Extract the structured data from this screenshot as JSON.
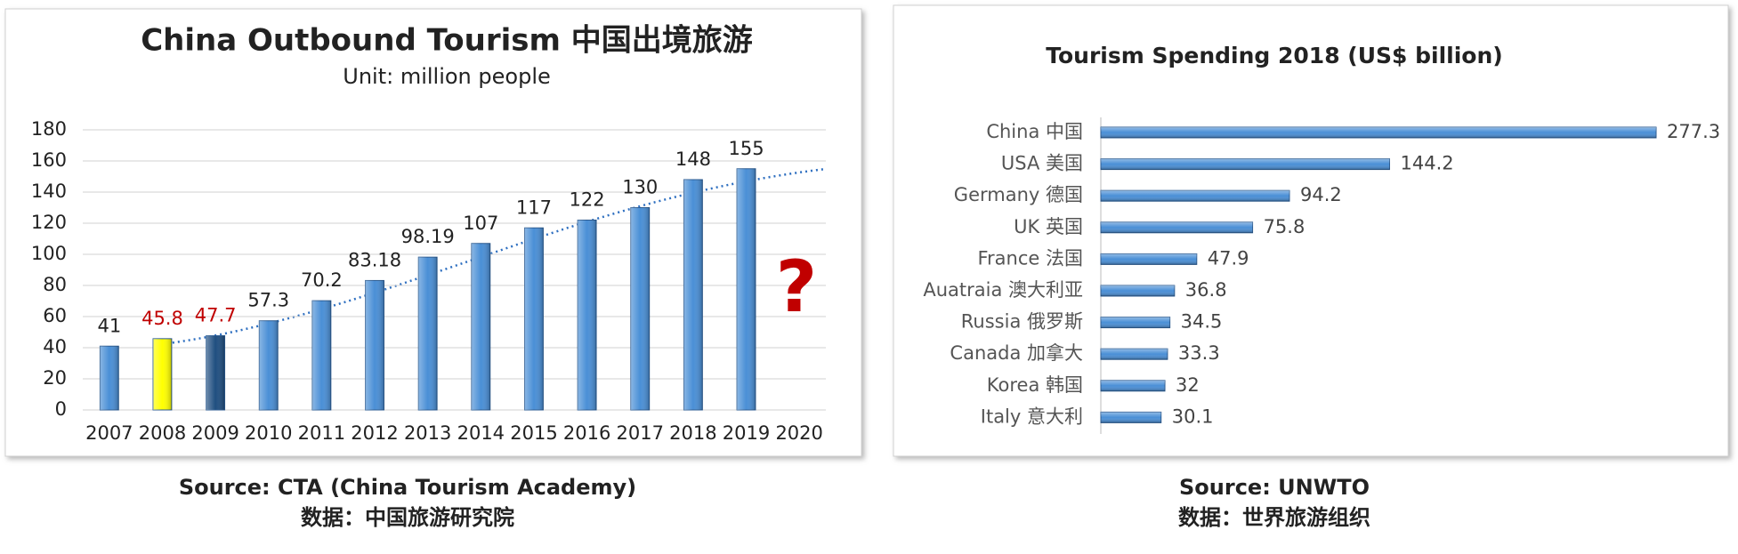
{
  "chart_data": [
    {
      "type": "bar",
      "title": "China Outbound Tourism  中国出境旅游",
      "subtitle": "Unit: million people",
      "categories": [
        "2007",
        "2008",
        "2009",
        "2010",
        "2011",
        "2012",
        "2013",
        "2014",
        "2015",
        "2016",
        "2017",
        "2018",
        "2019",
        "2020"
      ],
      "values": [
        41,
        45.8,
        47.7,
        57.3,
        70.2,
        83.18,
        98.19,
        107,
        117,
        122,
        130,
        148,
        155,
        null
      ],
      "colors": [
        "#4a8fd6",
        "#ffff00",
        "#1f4e80",
        "#4a8fd6",
        "#4a8fd6",
        "#4a8fd6",
        "#4a8fd6",
        "#4a8fd6",
        "#4a8fd6",
        "#4a8fd6",
        "#4a8fd6",
        "#4a8fd6",
        "#4a8fd6",
        "#4a8fd6"
      ],
      "label_colors": [
        "#222222",
        "#c00000",
        "#c00000",
        "#222222",
        "#222222",
        "#222222",
        "#222222",
        "#222222",
        "#222222",
        "#222222",
        "#222222",
        "#222222",
        "#222222",
        "#222222"
      ],
      "ylim": [
        0,
        180
      ],
      "yticks": [
        0,
        20,
        40,
        60,
        80,
        100,
        120,
        140,
        160,
        180
      ],
      "grid": true,
      "annotation": "?",
      "source": "Source: CTA (China Tourism Academy)",
      "source_cn": "数据：中国旅游研究院"
    },
    {
      "type": "hbar",
      "title": "Tourism Spending  2018 (US$ billion)",
      "categories": [
        "China 中国",
        "USA 美国",
        "Germany 德国",
        "UK 英国",
        "France 法国",
        "Auatraia 澳大利亚",
        "Russia 俄罗斯",
        "Canada 加拿大",
        "Korea 韩国",
        "Italy 意大利"
      ],
      "values": [
        277.3,
        144.2,
        94.2,
        75.8,
        47.9,
        36.8,
        34.5,
        33.3,
        32,
        30.1
      ],
      "color": "#4a8fd6",
      "source": "Source: UNWTO",
      "source_cn": "数据：世界旅游组织"
    }
  ]
}
